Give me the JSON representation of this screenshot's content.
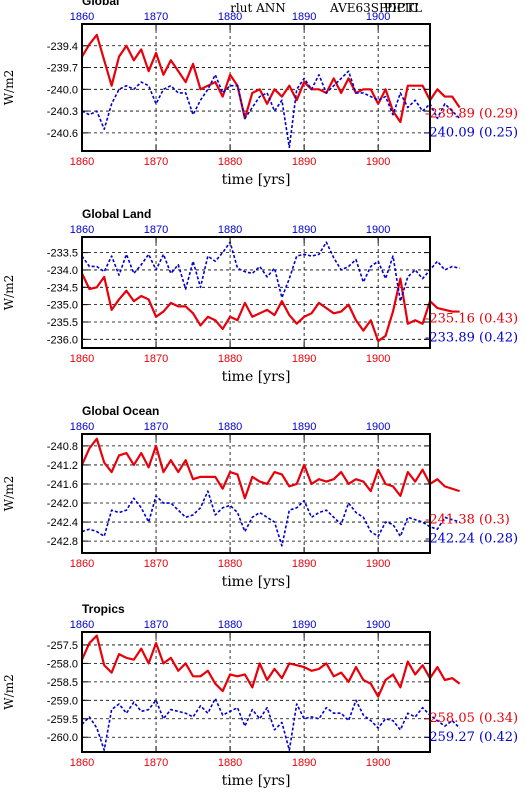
{
  "header": {
    "center_title": "rlut ANN",
    "legend_red": "AVE63SPDPIC",
    "legend_blue": "PICTL",
    "red_color": "#e8000b",
    "blue_color": "#0000d0"
  },
  "chart_data": [
    {
      "type": "line",
      "title": "Global",
      "ylabel": "W/m2",
      "xlabel": "time [yrs]",
      "x_start": 1860,
      "xlim": [
        1860,
        1907
      ],
      "x_ticks": [
        1860,
        1870,
        1880,
        1890,
        1900
      ],
      "x_tick_labels": [
        "1860",
        "1870",
        "1880",
        "1890",
        "1900"
      ],
      "ylim": [
        -240.85,
        -239.1
      ],
      "y_ticks": [
        -239.4,
        -239.7,
        -240.0,
        -240.3,
        -240.6
      ],
      "y_tick_labels": [
        "-239.4",
        "-239.7",
        "-240.0",
        "-240.3",
        "-240.6"
      ],
      "grid": true,
      "series": [
        {
          "name": "AVE63SPDPIC",
          "color": "#e8000b",
          "dash": false,
          "values": [
            -239.55,
            -239.38,
            -239.25,
            -239.6,
            -239.95,
            -239.55,
            -239.4,
            -239.6,
            -239.45,
            -239.75,
            -239.5,
            -239.8,
            -239.6,
            -239.75,
            -239.9,
            -239.65,
            -240.0,
            -239.95,
            -239.9,
            -240.1,
            -239.8,
            -239.95,
            -240.4,
            -240.05,
            -240.0,
            -240.2,
            -240.0,
            -240.1,
            -239.95,
            -240.15,
            -239.9,
            -240.0,
            -240.0,
            -240.05,
            -239.85,
            -240.05,
            -239.85,
            -240.05,
            -240.0,
            -240.0,
            -240.2,
            -240.0,
            -240.3,
            -240.45,
            -239.95,
            -239.95,
            -239.95,
            -240.15,
            -240.0,
            -240.1,
            -240.1,
            -240.25
          ]
        },
        {
          "name": "PICTL",
          "color": "#0000d0",
          "dash": true,
          "values": [
            -240.3,
            -240.35,
            -240.3,
            -240.55,
            -240.2,
            -240.0,
            -239.95,
            -240.0,
            -239.9,
            -239.95,
            -240.2,
            -240.0,
            -239.95,
            -240.05,
            -240.05,
            -240.35,
            -240.15,
            -240.0,
            -239.8,
            -240.05,
            -239.95,
            -239.95,
            -240.4,
            -240.25,
            -240.1,
            -240.05,
            -240.3,
            -240.15,
            -240.8,
            -240.0,
            -239.85,
            -240.0,
            -239.8,
            -240.05,
            -239.95,
            -239.85,
            -239.75,
            -240.05,
            -240.05,
            -240.1,
            -240.15,
            -240.1,
            -240.35,
            -240.05,
            -240.25,
            -240.15,
            -240.3,
            -240.2,
            -240.4,
            -240.2,
            -240.3,
            -240.4
          ]
        }
      ],
      "stats": [
        {
          "label": "-239.89 (0.29)",
          "color": "#e8000b"
        },
        {
          "label": "-240.09 (0.25)",
          "color": "#0000d0"
        }
      ]
    },
    {
      "type": "line",
      "title": "Global Land",
      "ylabel": "W/m2",
      "xlabel": "time [yrs]",
      "x_start": 1860,
      "xlim": [
        1860,
        1907
      ],
      "x_ticks": [
        1860,
        1870,
        1880,
        1890,
        1900
      ],
      "x_tick_labels": [
        "1860",
        "1870",
        "1880",
        "1890",
        "1900"
      ],
      "ylim": [
        -236.25,
        -233.05
      ],
      "y_ticks": [
        -233.5,
        -234.0,
        -234.5,
        -235.0,
        -235.5,
        -236.0
      ],
      "y_tick_labels": [
        "-233.5",
        "-234.0",
        "-234.5",
        "-235.0",
        "-235.5",
        "-236.0"
      ],
      "grid": true,
      "series": [
        {
          "name": "AVE63SPDPIC",
          "color": "#e8000b",
          "dash": false,
          "values": [
            -234.1,
            -234.55,
            -234.5,
            -234.2,
            -235.15,
            -234.85,
            -234.6,
            -234.9,
            -234.75,
            -234.85,
            -235.35,
            -235.2,
            -234.95,
            -235.05,
            -235.05,
            -235.25,
            -235.6,
            -235.35,
            -235.45,
            -235.7,
            -235.35,
            -235.45,
            -234.95,
            -235.35,
            -235.25,
            -235.15,
            -235.3,
            -234.9,
            -235.3,
            -235.55,
            -235.35,
            -235.25,
            -234.95,
            -235.1,
            -235.25,
            -235.2,
            -235.0,
            -235.45,
            -235.75,
            -235.45,
            -236.05,
            -235.9,
            -235.2,
            -234.25,
            -235.55,
            -235.45,
            -235.55,
            -234.9,
            -235.1,
            -235.15,
            -235.2,
            -235.2
          ]
        },
        {
          "name": "PICTL",
          "color": "#0000d0",
          "dash": true,
          "values": [
            -233.6,
            -233.9,
            -233.9,
            -234.05,
            -233.6,
            -234.15,
            -233.55,
            -234.1,
            -233.85,
            -233.55,
            -234.0,
            -233.55,
            -234.1,
            -233.85,
            -234.55,
            -233.75,
            -234.5,
            -233.6,
            -233.75,
            -233.5,
            -233.2,
            -233.95,
            -234.05,
            -234.1,
            -233.9,
            -234.2,
            -233.95,
            -234.8,
            -234.25,
            -233.6,
            -233.55,
            -233.6,
            -233.55,
            -233.2,
            -233.65,
            -234.0,
            -233.9,
            -233.7,
            -234.35,
            -233.9,
            -233.75,
            -234.25,
            -233.6,
            -234.9,
            -234.2,
            -234.0,
            -234.25,
            -234.0,
            -233.75,
            -234.0,
            -233.9,
            -233.95
          ]
        }
      ],
      "stats": [
        {
          "label": "-235.16 (0.43)",
          "color": "#e8000b"
        },
        {
          "label": "-233.89 (0.42)",
          "color": "#0000d0"
        }
      ]
    },
    {
      "type": "line",
      "title": "Global Ocean",
      "ylabel": "W/m2",
      "xlabel": "time [yrs]",
      "x_start": 1860,
      "xlim": [
        1860,
        1907
      ],
      "x_ticks": [
        1860,
        1870,
        1880,
        1890,
        1900
      ],
      "x_tick_labels": [
        "1860",
        "1870",
        "1880",
        "1890",
        "1900"
      ],
      "ylim": [
        -243.05,
        -240.55
      ],
      "y_ticks": [
        -240.8,
        -241.2,
        -241.6,
        -242.0,
        -242.4,
        -242.8
      ],
      "y_tick_labels": [
        "-240.8",
        "-241.2",
        "-241.6",
        "-242.0",
        "-242.4",
        "-242.8"
      ],
      "grid": true,
      "series": [
        {
          "name": "AVE63SPDPIC",
          "color": "#e8000b",
          "dash": false,
          "values": [
            -241.2,
            -240.85,
            -240.65,
            -241.15,
            -241.35,
            -241.0,
            -240.95,
            -241.2,
            -240.95,
            -241.25,
            -240.8,
            -241.35,
            -241.1,
            -241.35,
            -241.1,
            -241.5,
            -241.45,
            -241.45,
            -241.45,
            -241.7,
            -241.35,
            -241.4,
            -241.9,
            -241.45,
            -241.55,
            -241.6,
            -241.35,
            -241.4,
            -241.65,
            -241.6,
            -241.2,
            -241.6,
            -241.5,
            -241.55,
            -241.5,
            -241.35,
            -241.6,
            -241.5,
            -241.55,
            -241.75,
            -241.3,
            -241.6,
            -241.65,
            -241.85,
            -241.35,
            -241.55,
            -241.3,
            -241.6,
            -241.5,
            -241.65,
            -241.7,
            -241.75
          ]
        },
        {
          "name": "PICTL",
          "color": "#0000d0",
          "dash": true,
          "values": [
            -242.6,
            -242.55,
            -242.6,
            -242.7,
            -242.15,
            -242.2,
            -242.15,
            -241.9,
            -242.1,
            -242.4,
            -241.85,
            -242.0,
            -242.0,
            -242.15,
            -242.3,
            -242.25,
            -242.1,
            -241.75,
            -242.25,
            -242.1,
            -242.05,
            -242.2,
            -242.6,
            -242.3,
            -242.2,
            -242.3,
            -242.4,
            -242.9,
            -242.15,
            -242.1,
            -241.95,
            -242.3,
            -242.2,
            -242.15,
            -242.3,
            -242.45,
            -242.0,
            -242.2,
            -242.3,
            -242.6,
            -242.7,
            -242.4,
            -242.45,
            -242.7,
            -242.3,
            -242.35,
            -242.4,
            -242.5,
            -242.55,
            -242.3,
            -242.35,
            -242.4
          ]
        }
      ],
      "stats": [
        {
          "label": "-241.38 (0.3)",
          "color": "#e8000b"
        },
        {
          "label": "-242.24 (0.28)",
          "color": "#0000d0"
        }
      ]
    },
    {
      "type": "line",
      "title": "Tropics",
      "ylabel": "W/m2",
      "xlabel": "time [yrs]",
      "x_start": 1860,
      "xlim": [
        1860,
        1907
      ],
      "x_ticks": [
        1860,
        1870,
        1880,
        1890,
        1900
      ],
      "x_tick_labels": [
        "1860",
        "1870",
        "1880",
        "1890",
        "1900"
      ],
      "ylim": [
        -260.4,
        -257.15
      ],
      "y_ticks": [
        -257.5,
        -258.0,
        -258.5,
        -259.0,
        -259.5,
        -260.0
      ],
      "y_tick_labels": [
        "-257.5",
        "-258.0",
        "-258.5",
        "-259.0",
        "-259.5",
        "-260.0"
      ],
      "grid": true,
      "series": [
        {
          "name": "AVE63SPDPIC",
          "color": "#e8000b",
          "dash": false,
          "values": [
            -257.9,
            -257.45,
            -257.25,
            -258.05,
            -258.25,
            -257.75,
            -257.85,
            -257.9,
            -257.6,
            -258.0,
            -257.45,
            -258.0,
            -257.85,
            -258.2,
            -258.0,
            -258.35,
            -258.35,
            -258.2,
            -258.55,
            -258.75,
            -258.3,
            -258.35,
            -258.3,
            -258.65,
            -258.0,
            -258.45,
            -258.15,
            -258.4,
            -258.0,
            -258.05,
            -258.1,
            -258.2,
            -258.15,
            -258.0,
            -258.35,
            -258.25,
            -258.5,
            -258.1,
            -258.45,
            -258.55,
            -258.9,
            -258.45,
            -258.3,
            -258.65,
            -257.95,
            -258.3,
            -258.05,
            -258.4,
            -258.1,
            -258.45,
            -258.4,
            -258.55
          ]
        },
        {
          "name": "PICTL",
          "color": "#0000d0",
          "dash": true,
          "values": [
            -259.65,
            -259.45,
            -259.75,
            -260.35,
            -259.25,
            -259.1,
            -259.35,
            -259.05,
            -259.3,
            -259.25,
            -259.0,
            -259.5,
            -259.25,
            -259.3,
            -259.35,
            -259.45,
            -259.15,
            -259.35,
            -258.95,
            -259.4,
            -259.3,
            -259.2,
            -259.7,
            -259.25,
            -259.5,
            -259.2,
            -259.8,
            -259.6,
            -260.35,
            -259.1,
            -259.5,
            -259.45,
            -259.5,
            -259.2,
            -259.35,
            -259.35,
            -259.55,
            -259.0,
            -259.4,
            -259.55,
            -259.75,
            -259.5,
            -259.55,
            -259.8,
            -259.35,
            -259.45,
            -259.2,
            -259.4,
            -259.55,
            -259.7,
            -259.55,
            -259.75
          ]
        }
      ],
      "stats": [
        {
          "label": "-258.05 (0.34)",
          "color": "#e8000b"
        },
        {
          "label": "-259.27 (0.42)",
          "color": "#0000d0"
        }
      ]
    }
  ]
}
